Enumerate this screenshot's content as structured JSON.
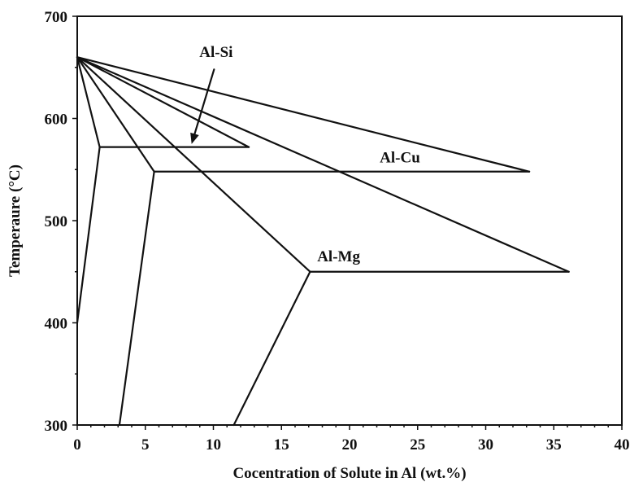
{
  "chart_data": {
    "type": "line",
    "title": "",
    "xlabel": "Cocentration of Solute in Al (wt.%)",
    "ylabel": "Temperaure (°C)",
    "xlim": [
      0,
      40
    ],
    "ylim": [
      300,
      700
    ],
    "x_ticks": [
      0,
      5,
      10,
      15,
      20,
      25,
      30,
      35,
      40
    ],
    "y_ticks": [
      300,
      400,
      500,
      600,
      700
    ],
    "grid": false,
    "series": [
      {
        "name": "Al-Si",
        "segments": [
          [
            [
              0,
              660
            ],
            [
              12.6,
              572
            ]
          ],
          [
            [
              0,
              660
            ],
            [
              1.65,
              572
            ]
          ],
          [
            [
              1.65,
              572
            ],
            [
              12.6,
              572
            ]
          ],
          [
            [
              1.65,
              572
            ],
            [
              0,
              400
            ]
          ]
        ]
      },
      {
        "name": "Al-Cu",
        "segments": [
          [
            [
              0,
              660
            ],
            [
              33.2,
              548
            ]
          ],
          [
            [
              0,
              660
            ],
            [
              5.65,
              548
            ]
          ],
          [
            [
              5.65,
              548
            ],
            [
              33.2,
              548
            ]
          ],
          [
            [
              5.65,
              548
            ],
            [
              3.1,
              300
            ]
          ]
        ]
      },
      {
        "name": "Al-Mg",
        "segments": [
          [
            [
              0,
              660
            ],
            [
              36.1,
              450
            ]
          ],
          [
            [
              0,
              660
            ],
            [
              17.1,
              450
            ]
          ],
          [
            [
              17.1,
              450
            ],
            [
              36.1,
              450
            ]
          ],
          [
            [
              17.1,
              450
            ],
            [
              11.5,
              300
            ]
          ]
        ]
      }
    ],
    "annotations": [
      {
        "text": "Al-Si",
        "x": 10.2,
        "y": 660
      },
      {
        "text": "Al-Cu",
        "x": 23.7,
        "y": 557
      },
      {
        "text": "Al-Mg",
        "x": 19.2,
        "y": 460
      }
    ],
    "arrow": {
      "from": [
        10.05,
        648
      ],
      "to": [
        8.4,
        575
      ]
    }
  }
}
